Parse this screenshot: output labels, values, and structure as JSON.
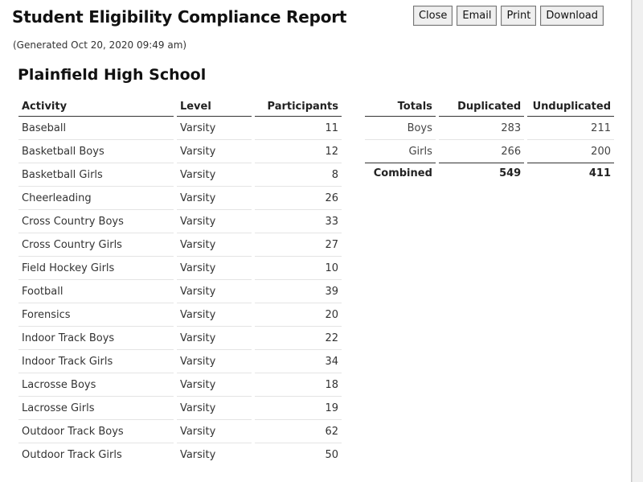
{
  "report": {
    "title": "Student Eligibility Compliance Report",
    "generated": "(Generated Oct 20, 2020 09:49 am)",
    "school": "Plainfield High School"
  },
  "toolbar": {
    "close_label": "Close",
    "email_label": "Email",
    "print_label": "Print",
    "download_label": "Download"
  },
  "activities": {
    "headers": {
      "activity": "Activity",
      "level": "Level",
      "participants": "Participants"
    },
    "rows": [
      {
        "activity": "Baseball",
        "level": "Varsity",
        "participants": "11"
      },
      {
        "activity": "Basketball Boys",
        "level": "Varsity",
        "participants": "12"
      },
      {
        "activity": "Basketball Girls",
        "level": "Varsity",
        "participants": "8"
      },
      {
        "activity": "Cheerleading",
        "level": "Varsity",
        "participants": "26"
      },
      {
        "activity": "Cross Country Boys",
        "level": "Varsity",
        "participants": "33"
      },
      {
        "activity": "Cross Country Girls",
        "level": "Varsity",
        "participants": "27"
      },
      {
        "activity": "Field Hockey Girls",
        "level": "Varsity",
        "participants": "10"
      },
      {
        "activity": "Football",
        "level": "Varsity",
        "participants": "39"
      },
      {
        "activity": "Forensics",
        "level": "Varsity",
        "participants": "20"
      },
      {
        "activity": "Indoor Track Boys",
        "level": "Varsity",
        "participants": "22"
      },
      {
        "activity": "Indoor Track Girls",
        "level": "Varsity",
        "participants": "34"
      },
      {
        "activity": "Lacrosse Boys",
        "level": "Varsity",
        "participants": "18"
      },
      {
        "activity": "Lacrosse Girls",
        "level": "Varsity",
        "participants": "19"
      },
      {
        "activity": "Outdoor Track Boys",
        "level": "Varsity",
        "participants": "62"
      },
      {
        "activity": "Outdoor Track Girls",
        "level": "Varsity",
        "participants": "50"
      }
    ]
  },
  "totals": {
    "headers": {
      "totals": "Totals",
      "duplicated": "Duplicated",
      "unduplicated": "Unduplicated"
    },
    "rows": [
      {
        "label": "Boys",
        "duplicated": "283",
        "unduplicated": "211"
      },
      {
        "label": "Girls",
        "duplicated": "266",
        "unduplicated": "200"
      }
    ],
    "combined": {
      "label": "Combined",
      "duplicated": "549",
      "unduplicated": "411"
    }
  }
}
